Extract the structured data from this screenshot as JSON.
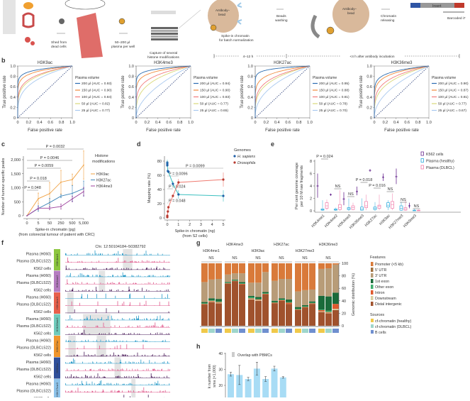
{
  "panel_labels": {
    "b": "b",
    "c": "c",
    "d": "d",
    "e": "e",
    "f": "f",
    "g": "g",
    "h": "h"
  },
  "panel_a": {
    "shed": [
      "Shed from",
      "dead cells"
    ],
    "plasma": [
      "50–200 µl",
      "plasma per well"
    ],
    "capture": [
      "Capture of several",
      "histone modifications"
    ],
    "bead1": [
      "Antibody–",
      "bead"
    ],
    "spikein": [
      "Spike-in chromatin",
      "for batch normalization"
    ],
    "washing": [
      "Beads",
      "washing"
    ],
    "bead2": [
      "Antibody–",
      "bead"
    ],
    "releasing": [
      "Chromatin",
      "releasing"
    ],
    "insert": "Insert",
    "barcode": "Barcoded i7",
    "time1": "4–12 h",
    "time2": "<4 h after antibody incubation",
    "colors": {
      "vessel": "#d9534f",
      "bead": "#d9b99b",
      "antibody": "#9fc9e8",
      "i5": "#2f55a4",
      "i7": "#c0392b"
    }
  },
  "chart_data": [
    {
      "type": "line",
      "title": "H3K9ac",
      "xlabel": "False positive rate",
      "ylabel": "True positive rate",
      "xlim": [
        0,
        1
      ],
      "ylim": [
        0,
        1
      ],
      "xticks": [
        "0",
        "0.2",
        "0.4",
        "0.6",
        "0.8",
        "1.0"
      ],
      "yticks": [
        "0",
        "0.2",
        "0.4",
        "0.6",
        "0.8",
        "1.0"
      ],
      "legend_title": "Plasma volume",
      "legend": "right",
      "series": [
        {
          "name": "200 µl (AUC = 0.93)",
          "auc": 0.93,
          "color": "#2b6cb0"
        },
        {
          "name": "150 µl (AUC = 0.90)",
          "auc": 0.9,
          "color": "#f08a3c"
        },
        {
          "name": "100 µl (AUC = 0.84)",
          "auc": 0.84,
          "color": "#f27b7b"
        },
        {
          "name": "50 µl (AUC = 0.82)",
          "auc": 0.82,
          "color": "#d9d97a"
        },
        {
          "name": "25 µl (AUC = 0.77)",
          "auc": 0.77,
          "color": "#a9c9ef"
        }
      ]
    },
    {
      "type": "line",
      "title": "H3K4me3",
      "xlabel": "False positive rate",
      "ylabel": "True positive rate",
      "xlim": [
        0,
        1
      ],
      "ylim": [
        0,
        1
      ],
      "xticks": [
        "0",
        "0.2",
        "0.4",
        "0.6",
        "0.8",
        "1.0"
      ],
      "yticks": [
        "0",
        "0.2",
        "0.4",
        "0.6",
        "0.8",
        "1.0"
      ],
      "legend_title": "Plasma volume",
      "legend": "right",
      "series": [
        {
          "name": "200 µl (AUC = 0.94)",
          "auc": 0.94,
          "color": "#2b6cb0"
        },
        {
          "name": "150 µl (AUC = 0.90)",
          "auc": 0.9,
          "color": "#f08a3c"
        },
        {
          "name": "100 µl (AUC = 0.83)",
          "auc": 0.83,
          "color": "#f27b7b"
        },
        {
          "name": "50 µl (AUC = 0.77)",
          "auc": 0.77,
          "color": "#d9d97a"
        },
        {
          "name": "25 µl (AUC = 0.65)",
          "auc": 0.65,
          "color": "#a9c9ef"
        }
      ]
    },
    {
      "type": "line",
      "title": "H3K27ac",
      "xlabel": "False positive rate",
      "ylabel": "True positive rate",
      "xlim": [
        0,
        1
      ],
      "ylim": [
        0,
        1
      ],
      "xticks": [
        "0",
        "0.2",
        "0.4",
        "0.6",
        "0.8",
        "1.0"
      ],
      "yticks": [
        "0",
        "0.2",
        "0.4",
        "0.6",
        "0.8",
        "1.0"
      ],
      "legend_title": "Plasma volume",
      "legend": "right",
      "series": [
        {
          "name": "200 µl (AUC = 0.95)",
          "auc": 0.95,
          "color": "#2b6cb0"
        },
        {
          "name": "150 µl (AUC = 0.88)",
          "auc": 0.88,
          "color": "#f08a3c"
        },
        {
          "name": "100 µl (AUC = 0.81)",
          "auc": 0.81,
          "color": "#f27b7b"
        },
        {
          "name": "50 µl (AUC = 0.78)",
          "auc": 0.78,
          "color": "#d9d97a"
        },
        {
          "name": "25 µl (AUC = 0.70)",
          "auc": 0.7,
          "color": "#a9c9ef"
        }
      ]
    },
    {
      "type": "line",
      "title": "H3K36me3",
      "xlabel": "False positive rate",
      "ylabel": "True positive rate",
      "xlim": [
        0,
        1
      ],
      "ylim": [
        0,
        1
      ],
      "xticks": [
        "0",
        "0.2",
        "0.4",
        "0.6",
        "0.8",
        "1.0"
      ],
      "yticks": [
        "0",
        "0.2",
        "0.4",
        "0.6",
        "0.8",
        "1.0"
      ],
      "legend_title": "Plasma volume",
      "legend": "right",
      "series": [
        {
          "name": "200 µl (AUC = 0.90)",
          "auc": 0.9,
          "color": "#2b6cb0"
        },
        {
          "name": "150 µl (AUC = 0.87)",
          "auc": 0.87,
          "color": "#f08a3c"
        },
        {
          "name": "100 µl (AUC = 0.81)",
          "auc": 0.81,
          "color": "#f27b7b"
        },
        {
          "name": "50 µl (AUC = 0.77)",
          "auc": 0.77,
          "color": "#d9d97a"
        },
        {
          "name": "25 µl (AUC = 0.67)",
          "auc": 0.67,
          "color": "#a9c9ef"
        }
      ]
    },
    {
      "type": "line",
      "xlabel": [
        "Spike-in chromatin (pg)",
        "(from colorectal tumour of patient with CRC)"
      ],
      "ylabel": "Number of tumour-specific peaks",
      "categories": [
        "0",
        "5",
        "50",
        "250",
        "500",
        "5,000"
      ],
      "ylim": [
        0,
        2300
      ],
      "yticks": [
        0,
        500,
        1000,
        1500,
        2000
      ],
      "ytick_labels": [
        "0",
        "500",
        "1,000",
        "1,500",
        "2,000"
      ],
      "legend_title": [
        "Histone",
        "modifications"
      ],
      "legend": "right",
      "series": [
        {
          "name": "H3K9ac",
          "color": "#f0a040",
          "values": [
            0,
            610,
            790,
            1200,
            1290,
            1810
          ],
          "err": [
            0,
            200,
            400,
            420,
            200,
            500
          ]
        },
        {
          "name": "H3K27ac",
          "color": "#3f86b8",
          "values": [
            0,
            260,
            470,
            700,
            800,
            970
          ],
          "err": [
            0,
            100,
            150,
            60,
            280,
            270
          ]
        },
        {
          "name": "H3K4me3",
          "color": "#9b3f9b",
          "values": [
            0,
            270,
            270,
            330,
            600,
            860
          ],
          "err": [
            0,
            60,
            60,
            90,
            100,
            150
          ]
        }
      ],
      "comparisons": [
        {
          "label": "P = 0.0032",
          "from": 0,
          "to": 5
        },
        {
          "label": "P = 0.0046",
          "from": 0,
          "to": 4
        },
        {
          "label": "P = 0.0059",
          "from": 0,
          "to": 3
        },
        {
          "label": "P = 0.018",
          "from": 0,
          "to": 2
        },
        {
          "label": "P = 0.048",
          "from": 0,
          "to": 1
        }
      ]
    },
    {
      "type": "line",
      "xlabel": [
        "Spike-in chromatin (ng)",
        "(from S2 cells)"
      ],
      "ylabel": "Mapping rate (%)",
      "xlim": [
        0,
        5
      ],
      "ylim": [
        0,
        85
      ],
      "xticks": [
        "0",
        "1",
        "2",
        "3",
        "4",
        "5"
      ],
      "yticks": [
        "0",
        "20",
        "40",
        "60",
        "80"
      ],
      "legend_title": "Genomes",
      "legend": "right",
      "series": [
        {
          "name": "H. sapiens",
          "color": "#1f5fa8",
          "line": "#3cc0c0",
          "x": [
            0,
            0,
            0,
            0.05,
            0.1,
            0.5,
            1,
            5
          ],
          "y": [
            78,
            76,
            74,
            66,
            65,
            48,
            33,
            31
          ],
          "err": [
            4,
            3,
            2,
            2,
            2,
            4,
            6,
            8
          ]
        },
        {
          "name": "Drosophila",
          "color": "#b83a30",
          "line": "#ef7a70",
          "x": [
            0,
            0,
            0,
            0.05,
            0.1,
            0.5,
            1,
            5
          ],
          "y": [
            1,
            2,
            3,
            9,
            15,
            31,
            50,
            54
          ],
          "err": [
            1,
            1,
            1,
            1,
            2,
            2,
            5,
            10
          ]
        }
      ],
      "comparisons": [
        {
          "label": "P = 0.0099",
          "to": 5
        },
        {
          "label": "P = 0.0096",
          "to": 1
        },
        {
          "label": "P = 0.024",
          "to": 0.5
        },
        {
          "label": "P = 0.048",
          "to": 0.1
        }
      ]
    },
    {
      "type": "box",
      "ylabel": [
        "Per cent genome coverage",
        "per 10 M raw fragments"
      ],
      "ylim": [
        0,
        8
      ],
      "yticks": [
        "0",
        "2",
        "4",
        "6",
        "8"
      ],
      "legend": "top-right",
      "categories": [
        "H3K4me1",
        "H3K4me2",
        "H3K4me3",
        "H3K36me3",
        "H3K27ac",
        "H3K9ac",
        "H3K27me3",
        "H3K9me3"
      ],
      "groups": [
        {
          "name": "K562 cells",
          "color": "#6a2c91"
        },
        {
          "name": "Plasma (healthy)",
          "color": "#2aa8dc"
        },
        {
          "name": "Plasma (DLBCL)",
          "color": "#f07aa8"
        }
      ],
      "k562": [
        [
          4,
          2.1,
          6
        ],
        [
          2.6,
          2.5,
          2.75
        ],
        [
          1.9,
          0.9,
          3
        ],
        [
          3.1,
          2.5,
          3.9
        ],
        [
          6.5,
          6.3,
          6.7
        ],
        [
          5.4,
          4.8,
          6
        ],
        [
          5.5,
          4.3,
          6.8
        ],
        [
          0.8,
          0.4,
          1.3
        ]
      ],
      "healthy": [
        [
          0,
          0.1,
          0.2,
          0.3,
          1.7
        ],
        [
          0,
          0.1,
          0.2,
          0.3,
          0.5
        ],
        [
          0,
          0.2,
          0.35,
          0.5,
          2
        ],
        [
          0,
          0.1,
          0.3,
          0.6,
          2
        ],
        [
          0,
          0.2,
          0.4,
          0.6,
          1.4
        ],
        [
          0.1,
          0.6,
          0.9,
          1.3,
          1.7
        ],
        [
          0,
          0.1,
          0.4,
          0.8,
          1.4
        ],
        [
          0,
          0,
          0.05,
          0.1,
          0.3
        ]
      ],
      "dlbcl": [
        [
          0.1,
          0.4,
          0.8,
          1.3,
          1.8
        ],
        [
          0,
          0.2,
          0.5,
          1,
          3.3
        ],
        [
          0.1,
          0.2,
          0.5,
          0.8,
          1.3
        ],
        [
          0.1,
          0.5,
          0.8,
          1.5,
          2.6
        ],
        [
          0.1,
          0.4,
          0.7,
          0.9,
          2.6
        ],
        [
          0.1,
          0.4,
          1,
          1.5,
          2.8
        ],
        [
          0,
          0.1,
          0.3,
          0.5,
          1.7
        ],
        [
          0,
          0,
          0.05,
          0.1,
          0.2
        ]
      ],
      "comparisons": [
        "P = 0.024",
        "NS",
        "NS",
        "P = 0.018",
        "P = 0.016",
        "NS",
        "NS",
        "NS"
      ]
    },
    {
      "type": "area",
      "title": "Chr. 12:50104184–50382792",
      "marks": [
        {
          "name": "H3K4me1",
          "color": "#8cc63f"
        },
        {
          "name": "H3K4me2",
          "color": "#b57cc0"
        },
        {
          "name": "H3K4me3",
          "color": "#e8604c"
        },
        {
          "name": "H3K36me3",
          "color": "#6fcabb"
        },
        {
          "name": "H3K27ac",
          "color": "#f0962e"
        },
        {
          "name": "H3K9ac",
          "color": "#2f4f9a"
        },
        {
          "name": "H3K27me3",
          "color": "#8ec3ea"
        }
      ],
      "samples": [
        {
          "name": "Plasma (H060)",
          "color": "#2a9bc8"
        },
        {
          "name": "Plasma (DLBCL522)",
          "color": "#e05a8c"
        },
        {
          "name": "K562 cells",
          "color": "#4b1c5a"
        }
      ]
    },
    {
      "type": "bar",
      "ylabel": "Genomic distribution (%)",
      "ylim": [
        0,
        100
      ],
      "yticks": [
        "0",
        "20",
        "40",
        "60",
        "80",
        "100"
      ],
      "features_title": "Features",
      "sources_title": "Sources",
      "features": [
        {
          "name": "Promoter (<5 kb)",
          "color": "#d97a3a"
        },
        {
          "name": "5′ UTR",
          "color": "#a0703f"
        },
        {
          "name": "3′ UTR",
          "color": "#b89c78"
        },
        {
          "name": "1st exon",
          "color": "#1a6b3a"
        },
        {
          "name": "Other exon",
          "color": "#3fae6e"
        },
        {
          "name": "Intron",
          "color": "#e05a2e"
        },
        {
          "name": "Downstream",
          "color": "#d8d0a0"
        },
        {
          "name": "Distal intergenic",
          "color": "#a0522d"
        }
      ],
      "sources": [
        {
          "name": "cf-chromatin (healthy)",
          "color": "#f0c94a"
        },
        {
          "name": "cf-chromatin (DLBCL)",
          "color": "#9fd6cc"
        },
        {
          "name": "B cells",
          "color": "#6f8fcf"
        }
      ],
      "groups": [
        {
          "name": "H3K4me1",
          "test": "NS",
          "bars": [
            [
              30,
              0,
              32,
              2,
              1,
              1,
              0,
              34
            ],
            [
              26,
              0,
              30,
              3,
              1,
              1,
              1,
              38
            ],
            [
              25,
              0,
              32,
              4,
              1,
              1,
              1,
              36
            ]
          ]
        },
        {
          "name": "H3K4me3",
          "test": "NS",
          "bars": [
            [
              18,
              0,
              12,
              1,
              1,
              0.5,
              0,
              67.5
            ],
            [
              16,
              0,
              10,
              1,
              1,
              0.5,
              0,
              71.5
            ],
            [
              16,
              0,
              14,
              2,
              1,
              1,
              0,
              66
            ]
          ]
        },
        {
          "name": "H3K9ac",
          "test": "NS",
          "bars": [
            [
              31,
              0,
              21,
              2,
              2,
              1,
              1,
              42
            ],
            [
              31,
              0,
              23,
              3,
              1,
              1,
              1,
              40
            ],
            [
              14,
              0,
              32,
              2,
              1,
              1,
              0,
              50
            ]
          ]
        },
        {
          "name": "H3K27ac",
          "test": "NS",
          "bars": [
            [
              28,
              0,
              32,
              2,
              1,
              1,
              0,
              36
            ],
            [
              25,
              0,
              31,
              2,
              1,
              1,
              0,
              40
            ],
            [
              25,
              0,
              33,
              4,
              1,
              2,
              0,
              35
            ]
          ]
        },
        {
          "name": "H3K27me3",
          "test": "NS",
          "bars": [
            [
              45,
              0,
              25,
              3,
              1,
              1,
              0,
              25
            ],
            [
              43,
              0,
              24,
              2,
              1,
              1,
              0,
              29
            ],
            [
              42,
              0,
              19,
              2,
              1,
              1,
              0,
              35
            ]
          ]
        },
        {
          "name": "H3K36me3",
          "test": "NS",
          "bars": [
            [
              9,
              0,
              43,
              22,
              1,
              2,
              1,
              22
            ],
            [
              8,
              0,
              45,
              23,
              2,
              1,
              1,
              20
            ],
            [
              2,
              0,
              45,
              18,
              0,
              8,
              2,
              25
            ]
          ]
        }
      ]
    },
    {
      "type": "bar",
      "ylabel": [
        "k number from",
        "sma (×1,000)"
      ],
      "ylim": [
        10,
        40
      ],
      "yticks": [
        "20",
        "30",
        "40"
      ],
      "legend": "top",
      "legend_label": "Overlap with PBMCs",
      "color": "#a8dcf5",
      "values": [
        27,
        26.5,
        24,
        30.5,
        24,
        30.5,
        25
      ],
      "err": [
        1.2,
        6,
        1,
        4,
        1.5,
        1.5,
        0.5
      ]
    }
  ]
}
